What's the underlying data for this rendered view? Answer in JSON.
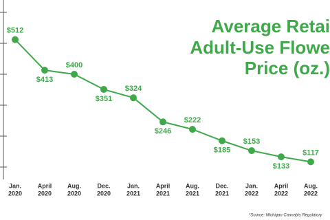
{
  "chart_data": {
    "type": "line",
    "title": [
      "Average Retai",
      "Adult-Use Flowe",
      "Price (oz.)"
    ],
    "source": "*Source: Michigan Cannabis Regulatory",
    "categories": [
      [
        "Jan.",
        "2020"
      ],
      [
        "April",
        "2020"
      ],
      [
        "Aug.",
        "2020"
      ],
      [
        "Dec.",
        "2020"
      ],
      [
        "Jan.",
        "2021"
      ],
      [
        "April",
        "2021"
      ],
      [
        "Aug.",
        "2021"
      ],
      [
        "Dec.",
        "2021"
      ],
      [
        "Jan.",
        "2022"
      ],
      [
        "April",
        "2022"
      ],
      [
        "Aug.",
        "2022"
      ]
    ],
    "values": [
      512,
      413,
      400,
      351,
      324,
      246,
      222,
      185,
      153,
      133,
      117
    ],
    "value_labels": [
      "$512",
      "$413",
      "$400",
      "$351",
      "$324",
      "$246",
      "$222",
      "$185",
      "$153",
      "$133",
      "$117"
    ],
    "color": "#3ea84a",
    "ylim": [
      60,
      600
    ],
    "yticks": [
      100,
      200,
      300,
      400,
      500,
      600
    ]
  }
}
